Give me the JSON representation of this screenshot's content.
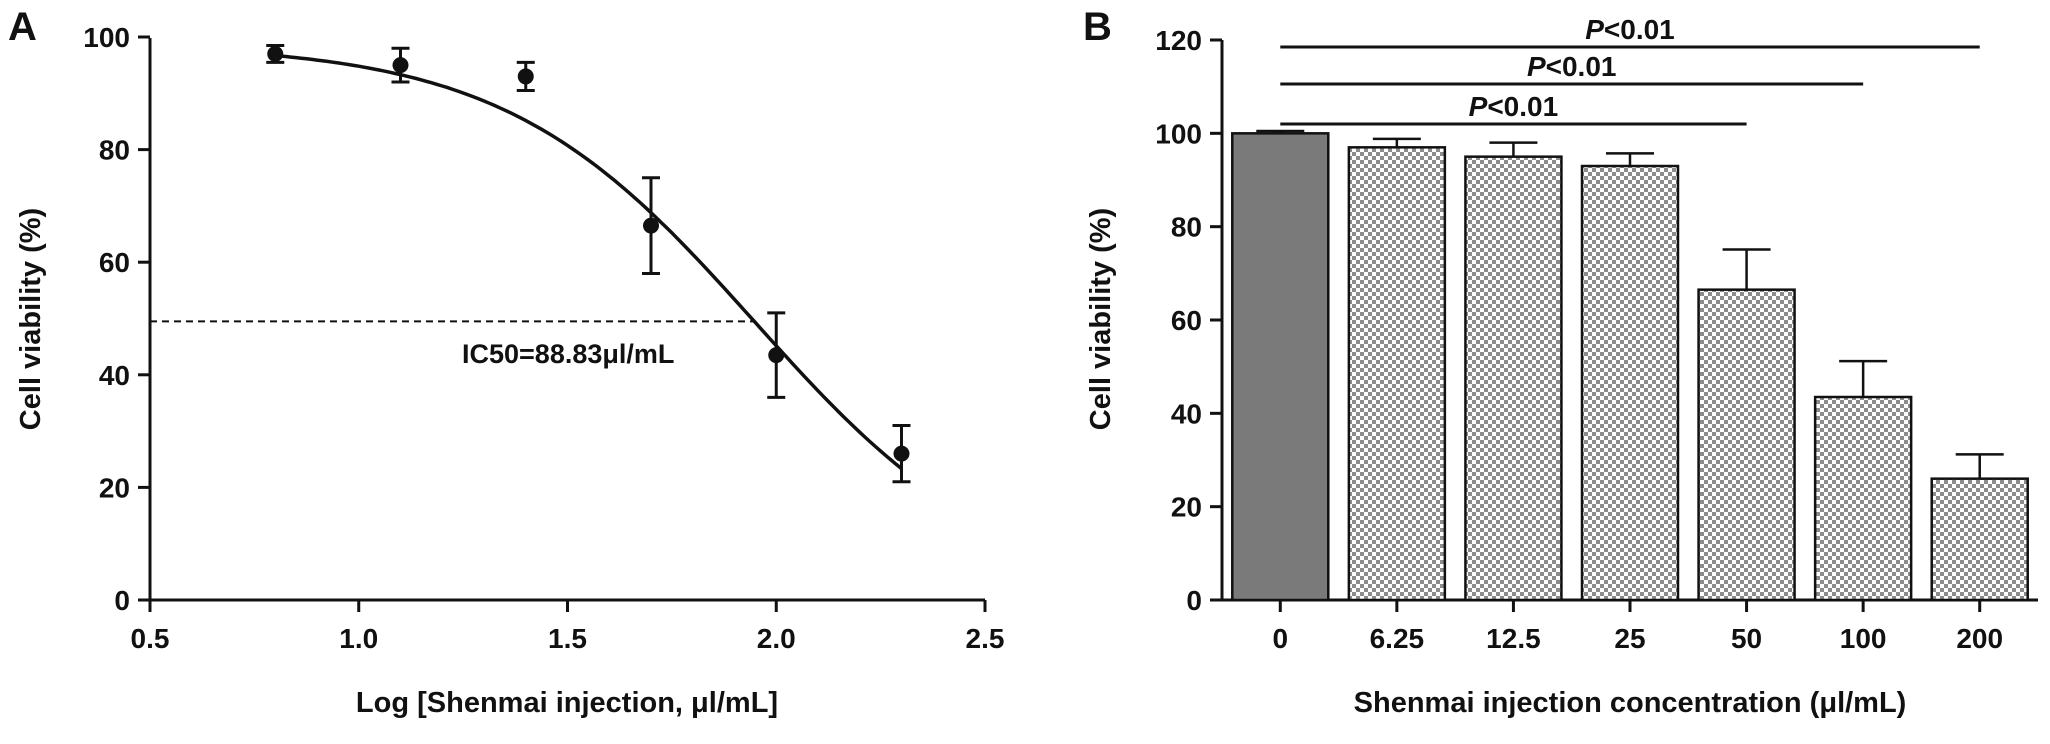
{
  "panels": {
    "a": {
      "letter": "A"
    },
    "b": {
      "letter": "B"
    }
  },
  "chart_data": [
    {
      "type": "scatter",
      "panel": "A",
      "xlabel": "Log [Shenmai injection, μl/mL]",
      "ylabel": "Cell viability (%)",
      "xlim": [
        0.5,
        2.5
      ],
      "ylim": [
        0,
        100
      ],
      "xticks": [
        0.5,
        1.0,
        1.5,
        2.0,
        2.5
      ],
      "xtick_labels": [
        "0.5",
        "1.0",
        "1.5",
        "2.0",
        "2.5"
      ],
      "yticks": [
        0,
        20,
        40,
        60,
        80,
        100
      ],
      "ytick_labels": [
        "0",
        "20",
        "40",
        "60",
        "80",
        "100"
      ],
      "points": [
        {
          "x": 0.8,
          "y": 97,
          "err": 1.5
        },
        {
          "x": 1.1,
          "y": 95,
          "err": 3
        },
        {
          "x": 1.4,
          "y": 93,
          "err": 2.5
        },
        {
          "x": 1.7,
          "y": 66.5,
          "err": 8.5
        },
        {
          "x": 2.0,
          "y": 43.5,
          "err": 7.5
        },
        {
          "x": 2.3,
          "y": 26,
          "err": 5
        }
      ],
      "fit": {
        "model": "sigmoidal dose-response",
        "top": 98.8,
        "bottom": 0,
        "log_ic50": 1.9485,
        "hill_slope": -1.45,
        "x_range": [
          0.8,
          2.3
        ]
      },
      "reference_line": {
        "y": 49.5,
        "style": "dashed"
      },
      "annotation": "IC50=88.83μl/mL",
      "grid": false
    },
    {
      "type": "bar",
      "panel": "B",
      "xlabel": "Shenmai injection concentration (μl/mL)",
      "ylabel": "Cell viability (%)",
      "categories": [
        "0",
        "6.25",
        "12.5",
        "25",
        "50",
        "100",
        "200"
      ],
      "values": [
        100,
        97,
        95,
        93,
        66.5,
        43.5,
        26
      ],
      "errors": [
        0.5,
        1.8,
        3,
        2.7,
        8.6,
        7.7,
        5.2
      ],
      "ylim": [
        0,
        120
      ],
      "yticks": [
        0,
        20,
        40,
        60,
        80,
        100,
        120
      ],
      "ytick_labels": [
        "0",
        "20",
        "40",
        "60",
        "80",
        "100",
        "120"
      ],
      "colors": {
        "control": "#7a7a7a",
        "treated_pattern": "checkered grey"
      },
      "significance": [
        {
          "from": "0",
          "to": "50",
          "p": "P",
          "rest": "<0.01"
        },
        {
          "from": "0",
          "to": "100",
          "p": "P",
          "rest": "<0.01"
        },
        {
          "from": "0",
          "to": "200",
          "p": "P",
          "rest": "<0.01"
        }
      ],
      "grid": false
    }
  ]
}
